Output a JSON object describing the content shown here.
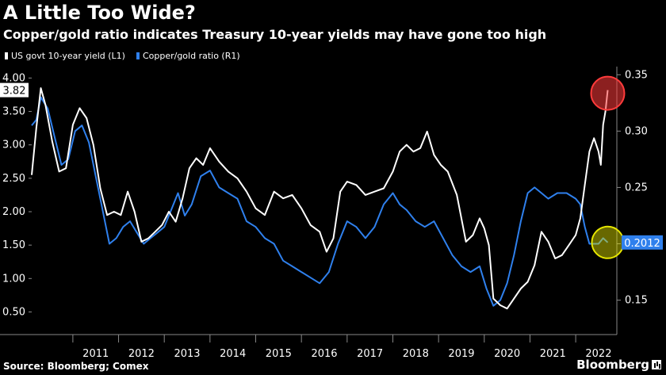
{
  "title": "A Little Too Wide?",
  "subtitle": "Copper/gold ratio indicates Treasury 10-year yields may have gone too high",
  "legend": [
    {
      "label": "US govt 10-year yield (L1)",
      "color": "#ffffff"
    },
    {
      "label": "Copper/gold ratio (R1)",
      "color": "#2f80ed"
    }
  ],
  "footer": {
    "source": "Source: Bloomberg; Comex",
    "brand": "Bloomberg"
  },
  "chart_data": {
    "type": "line",
    "x_ticks": [
      "2011",
      "2012",
      "2013",
      "2014",
      "2015",
      "2016",
      "2017",
      "2018",
      "2019",
      "2020",
      "2021",
      "2022"
    ],
    "xlim": [
      2010.1,
      2022.9
    ],
    "y_left": {
      "ticks": [
        "0.50",
        "1.00",
        "1.50",
        "2.00",
        "2.50",
        "3.00",
        "3.50",
        "4.00"
      ],
      "ylim": [
        0.28,
        4.1
      ]
    },
    "y_right": {
      "ticks": [
        "0.15",
        "0.20",
        "0.25",
        "0.30",
        "0.35"
      ],
      "ylim": [
        0.1265,
        0.353
      ]
    },
    "last_value_left": "3.82",
    "last_value_right": "0.2012",
    "highlight_colors": {
      "left": "#ff3b3b",
      "right": "#e6e600"
    },
    "series": [
      {
        "name": "US govt 10-year yield (L1)",
        "axis": "left",
        "color": "#ffffff",
        "x": [
          2010.1,
          2010.2,
          2010.3,
          2010.4,
          2010.55,
          2010.7,
          2010.85,
          2011.0,
          2011.15,
          2011.3,
          2011.45,
          2011.6,
          2011.75,
          2011.9,
          2012.05,
          2012.2,
          2012.35,
          2012.5,
          2012.65,
          2012.8,
          2012.95,
          2013.1,
          2013.25,
          2013.4,
          2013.55,
          2013.7,
          2013.85,
          2014.0,
          2014.2,
          2014.4,
          2014.6,
          2014.8,
          2015.0,
          2015.2,
          2015.4,
          2015.6,
          2015.8,
          2016.0,
          2016.2,
          2016.4,
          2016.55,
          2016.7,
          2016.85,
          2017.0,
          2017.2,
          2017.4,
          2017.6,
          2017.8,
          2018.0,
          2018.15,
          2018.3,
          2018.45,
          2018.6,
          2018.75,
          2018.9,
          2019.05,
          2019.2,
          2019.4,
          2019.6,
          2019.75,
          2019.9,
          2020.0,
          2020.1,
          2020.2,
          2020.35,
          2020.5,
          2020.65,
          2020.8,
          2020.95,
          2021.1,
          2021.25,
          2021.4,
          2021.55,
          2021.7,
          2021.85,
          2022.0,
          2022.1,
          2022.2,
          2022.3,
          2022.4,
          2022.5,
          2022.55,
          2022.6,
          2022.65,
          2022.7
        ],
        "y": [
          2.55,
          3.25,
          3.85,
          3.6,
          3.05,
          2.6,
          2.65,
          3.3,
          3.55,
          3.4,
          3.0,
          2.35,
          1.95,
          2.0,
          1.95,
          2.3,
          2.0,
          1.55,
          1.6,
          1.7,
          1.8,
          2.0,
          1.85,
          2.2,
          2.65,
          2.8,
          2.7,
          2.95,
          2.75,
          2.6,
          2.5,
          2.3,
          2.05,
          1.95,
          2.3,
          2.2,
          2.25,
          2.05,
          1.8,
          1.7,
          1.4,
          1.6,
          2.3,
          2.45,
          2.4,
          2.25,
          2.3,
          2.35,
          2.6,
          2.9,
          3.0,
          2.9,
          2.95,
          3.2,
          2.85,
          2.7,
          2.6,
          2.25,
          1.55,
          1.65,
          1.9,
          1.75,
          1.5,
          0.7,
          0.6,
          0.55,
          0.7,
          0.85,
          0.95,
          1.2,
          1.7,
          1.55,
          1.3,
          1.35,
          1.5,
          1.65,
          1.9,
          2.4,
          2.9,
          3.1,
          2.9,
          2.7,
          3.3,
          3.5,
          3.82
        ]
      },
      {
        "name": "Copper/gold ratio (R1)",
        "axis": "right",
        "color": "#2f80ed",
        "x": [
          2010.1,
          2010.2,
          2010.3,
          2010.45,
          2010.6,
          2010.75,
          2010.9,
          2011.05,
          2011.2,
          2011.35,
          2011.5,
          2011.65,
          2011.8,
          2011.95,
          2012.1,
          2012.25,
          2012.4,
          2012.55,
          2012.7,
          2012.85,
          2013.0,
          2013.15,
          2013.3,
          2013.45,
          2013.6,
          2013.8,
          2014.0,
          2014.2,
          2014.4,
          2014.6,
          2014.8,
          2015.0,
          2015.2,
          2015.4,
          2015.6,
          2015.8,
          2016.0,
          2016.2,
          2016.4,
          2016.6,
          2016.8,
          2017.0,
          2017.2,
          2017.4,
          2017.6,
          2017.8,
          2018.0,
          2018.15,
          2018.3,
          2018.5,
          2018.7,
          2018.9,
          2019.1,
          2019.3,
          2019.5,
          2019.7,
          2019.9,
          2020.05,
          2020.2,
          2020.35,
          2020.5,
          2020.65,
          2020.8,
          2020.95,
          2021.1,
          2021.25,
          2021.4,
          2021.6,
          2021.8,
          2022.0,
          2022.1,
          2022.2,
          2022.3,
          2022.4,
          2022.5,
          2022.6,
          2022.7
        ],
        "y": [
          0.305,
          0.31,
          0.33,
          0.32,
          0.295,
          0.27,
          0.275,
          0.3,
          0.305,
          0.29,
          0.26,
          0.23,
          0.2,
          0.205,
          0.215,
          0.22,
          0.21,
          0.2,
          0.205,
          0.21,
          0.215,
          0.23,
          0.245,
          0.225,
          0.235,
          0.26,
          0.265,
          0.25,
          0.245,
          0.24,
          0.22,
          0.215,
          0.205,
          0.2,
          0.185,
          0.18,
          0.175,
          0.17,
          0.165,
          0.175,
          0.2,
          0.22,
          0.215,
          0.205,
          0.215,
          0.235,
          0.245,
          0.235,
          0.23,
          0.22,
          0.215,
          0.22,
          0.205,
          0.19,
          0.18,
          0.175,
          0.18,
          0.16,
          0.145,
          0.15,
          0.165,
          0.19,
          0.22,
          0.245,
          0.25,
          0.245,
          0.24,
          0.245,
          0.245,
          0.24,
          0.235,
          0.215,
          0.2,
          0.2,
          0.2,
          0.205,
          0.2012
        ]
      }
    ]
  }
}
